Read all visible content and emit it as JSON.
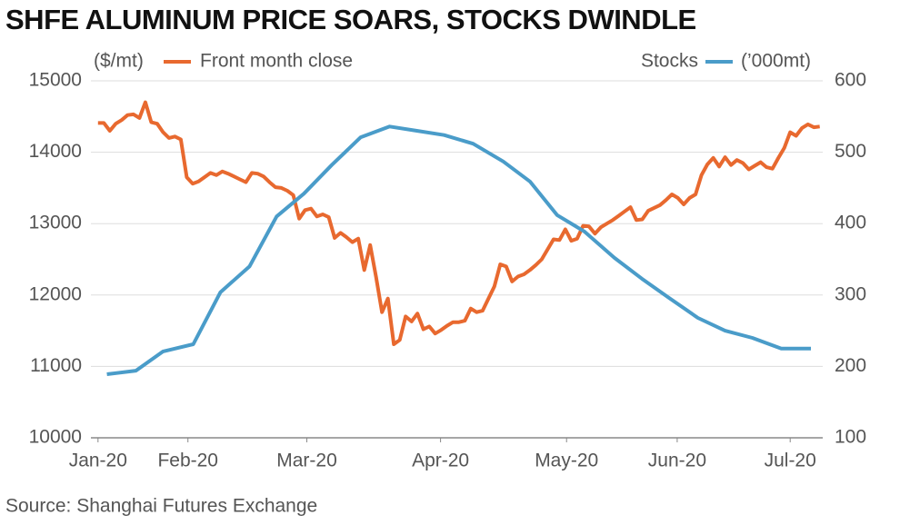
{
  "chart_data": {
    "type": "line",
    "title": "SHFE ALUMINUM PRICE SOARS, STOCKS DWINDLE",
    "y_label": "($/mt)",
    "y2_label": "(’000mt)",
    "source": "Source: Shanghai Futures Exchange",
    "xlim": [
      -1.2,
      122.5
    ],
    "xticks": [
      {
        "value": 0,
        "label": "Jan-20"
      },
      {
        "value": 15.2,
        "label": "Feb-20"
      },
      {
        "value": 35.3,
        "label": "Mar-20"
      },
      {
        "value": 57.9,
        "label": "Apr-20"
      },
      {
        "value": 79.2,
        "label": "May-20"
      },
      {
        "value": 97.9,
        "label": "Jun-20"
      },
      {
        "value": 117,
        "label": "Jul-20"
      }
    ],
    "ylim": [
      10000,
      15000
    ],
    "yticks": [
      10000,
      11000,
      12000,
      13000,
      14000,
      15000
    ],
    "y2lim": [
      100,
      600
    ],
    "y2ticks": [
      100,
      200,
      300,
      400,
      500,
      600
    ],
    "grid": true,
    "series": [
      {
        "name": "Front month close",
        "color": "#e8692f",
        "x": [
          0,
          1,
          2,
          3,
          4,
          5,
          6,
          7,
          8,
          9,
          10,
          11,
          12,
          13,
          14,
          15,
          16,
          17,
          18,
          19,
          20,
          21,
          22,
          23,
          24,
          25,
          26,
          27,
          28,
          29,
          30,
          31,
          32,
          33,
          34,
          35,
          36,
          37,
          38,
          39,
          40,
          41,
          42,
          43,
          44,
          45,
          46,
          47,
          48,
          49,
          50,
          51,
          52,
          53,
          54,
          55,
          56,
          57,
          58,
          59,
          60,
          61,
          62,
          63,
          64,
          65,
          66,
          67,
          68,
          69,
          70,
          71,
          72,
          73,
          74,
          75,
          76,
          77,
          78,
          79,
          80,
          81,
          82,
          83,
          84,
          85,
          86,
          87,
          88,
          89,
          90,
          91,
          92,
          93,
          94,
          95,
          96,
          97,
          98,
          99,
          100,
          101,
          102,
          103,
          104,
          105,
          106,
          107,
          108,
          109,
          110,
          111,
          112,
          113,
          114,
          115,
          116,
          117,
          118,
          119,
          120,
          121,
          122
        ],
        "values": [
          14410,
          14410,
          14300,
          14400,
          14450,
          14520,
          14530,
          14480,
          14700,
          14420,
          14400,
          14280,
          14200,
          14220,
          14180,
          13650,
          13560,
          13590,
          13650,
          13710,
          13680,
          13730,
          13700,
          13660,
          13620,
          13580,
          13710,
          13700,
          13660,
          13580,
          13510,
          13500,
          13460,
          13400,
          13070,
          13190,
          13210,
          13100,
          13130,
          13090,
          12800,
          12870,
          12810,
          12740,
          12790,
          12350,
          12700,
          12250,
          11760,
          11950,
          11310,
          11370,
          11700,
          11630,
          11740,
          11520,
          11560,
          11460,
          11510,
          11570,
          11620,
          11620,
          11640,
          11810,
          11760,
          11780,
          11950,
          12120,
          12430,
          12400,
          12190,
          12260,
          12290,
          12350,
          12420,
          12500,
          12640,
          12780,
          12770,
          12920,
          12760,
          12790,
          12970,
          12960,
          12860,
          12950,
          13000,
          13050,
          13110,
          13170,
          13230,
          13050,
          13060,
          13180,
          13220,
          13260,
          13330,
          13410,
          13360,
          13270,
          13360,
          13410,
          13680,
          13830,
          13920,
          13800,
          13930,
          13820,
          13890,
          13850,
          13760,
          13810,
          13860,
          13790,
          13770,
          13920,
          14060,
          14280,
          14230,
          14340,
          14390,
          14350,
          14360
        ]
      },
      {
        "name": "Stocks",
        "color": "#4a9cc9",
        "axis": "y2",
        "x": [
          1.5,
          6.4,
          11,
          16.1,
          20.7,
          25.6,
          30.2,
          34.8,
          39.5,
          44.4,
          49.3,
          53.9,
          58.5,
          63.4,
          68.5,
          73,
          77.6,
          82.2,
          87.3,
          91.9,
          96.5,
          101.4,
          106,
          110.6,
          115.5,
          120.5
        ],
        "values": [
          189,
          194,
          221,
          231,
          304,
          340,
          410,
          442,
          482,
          521,
          536,
          530,
          524,
          512,
          487,
          459,
          412,
          389,
          352,
          323,
          296,
          268,
          250,
          240,
          225,
          225
        ]
      }
    ]
  }
}
